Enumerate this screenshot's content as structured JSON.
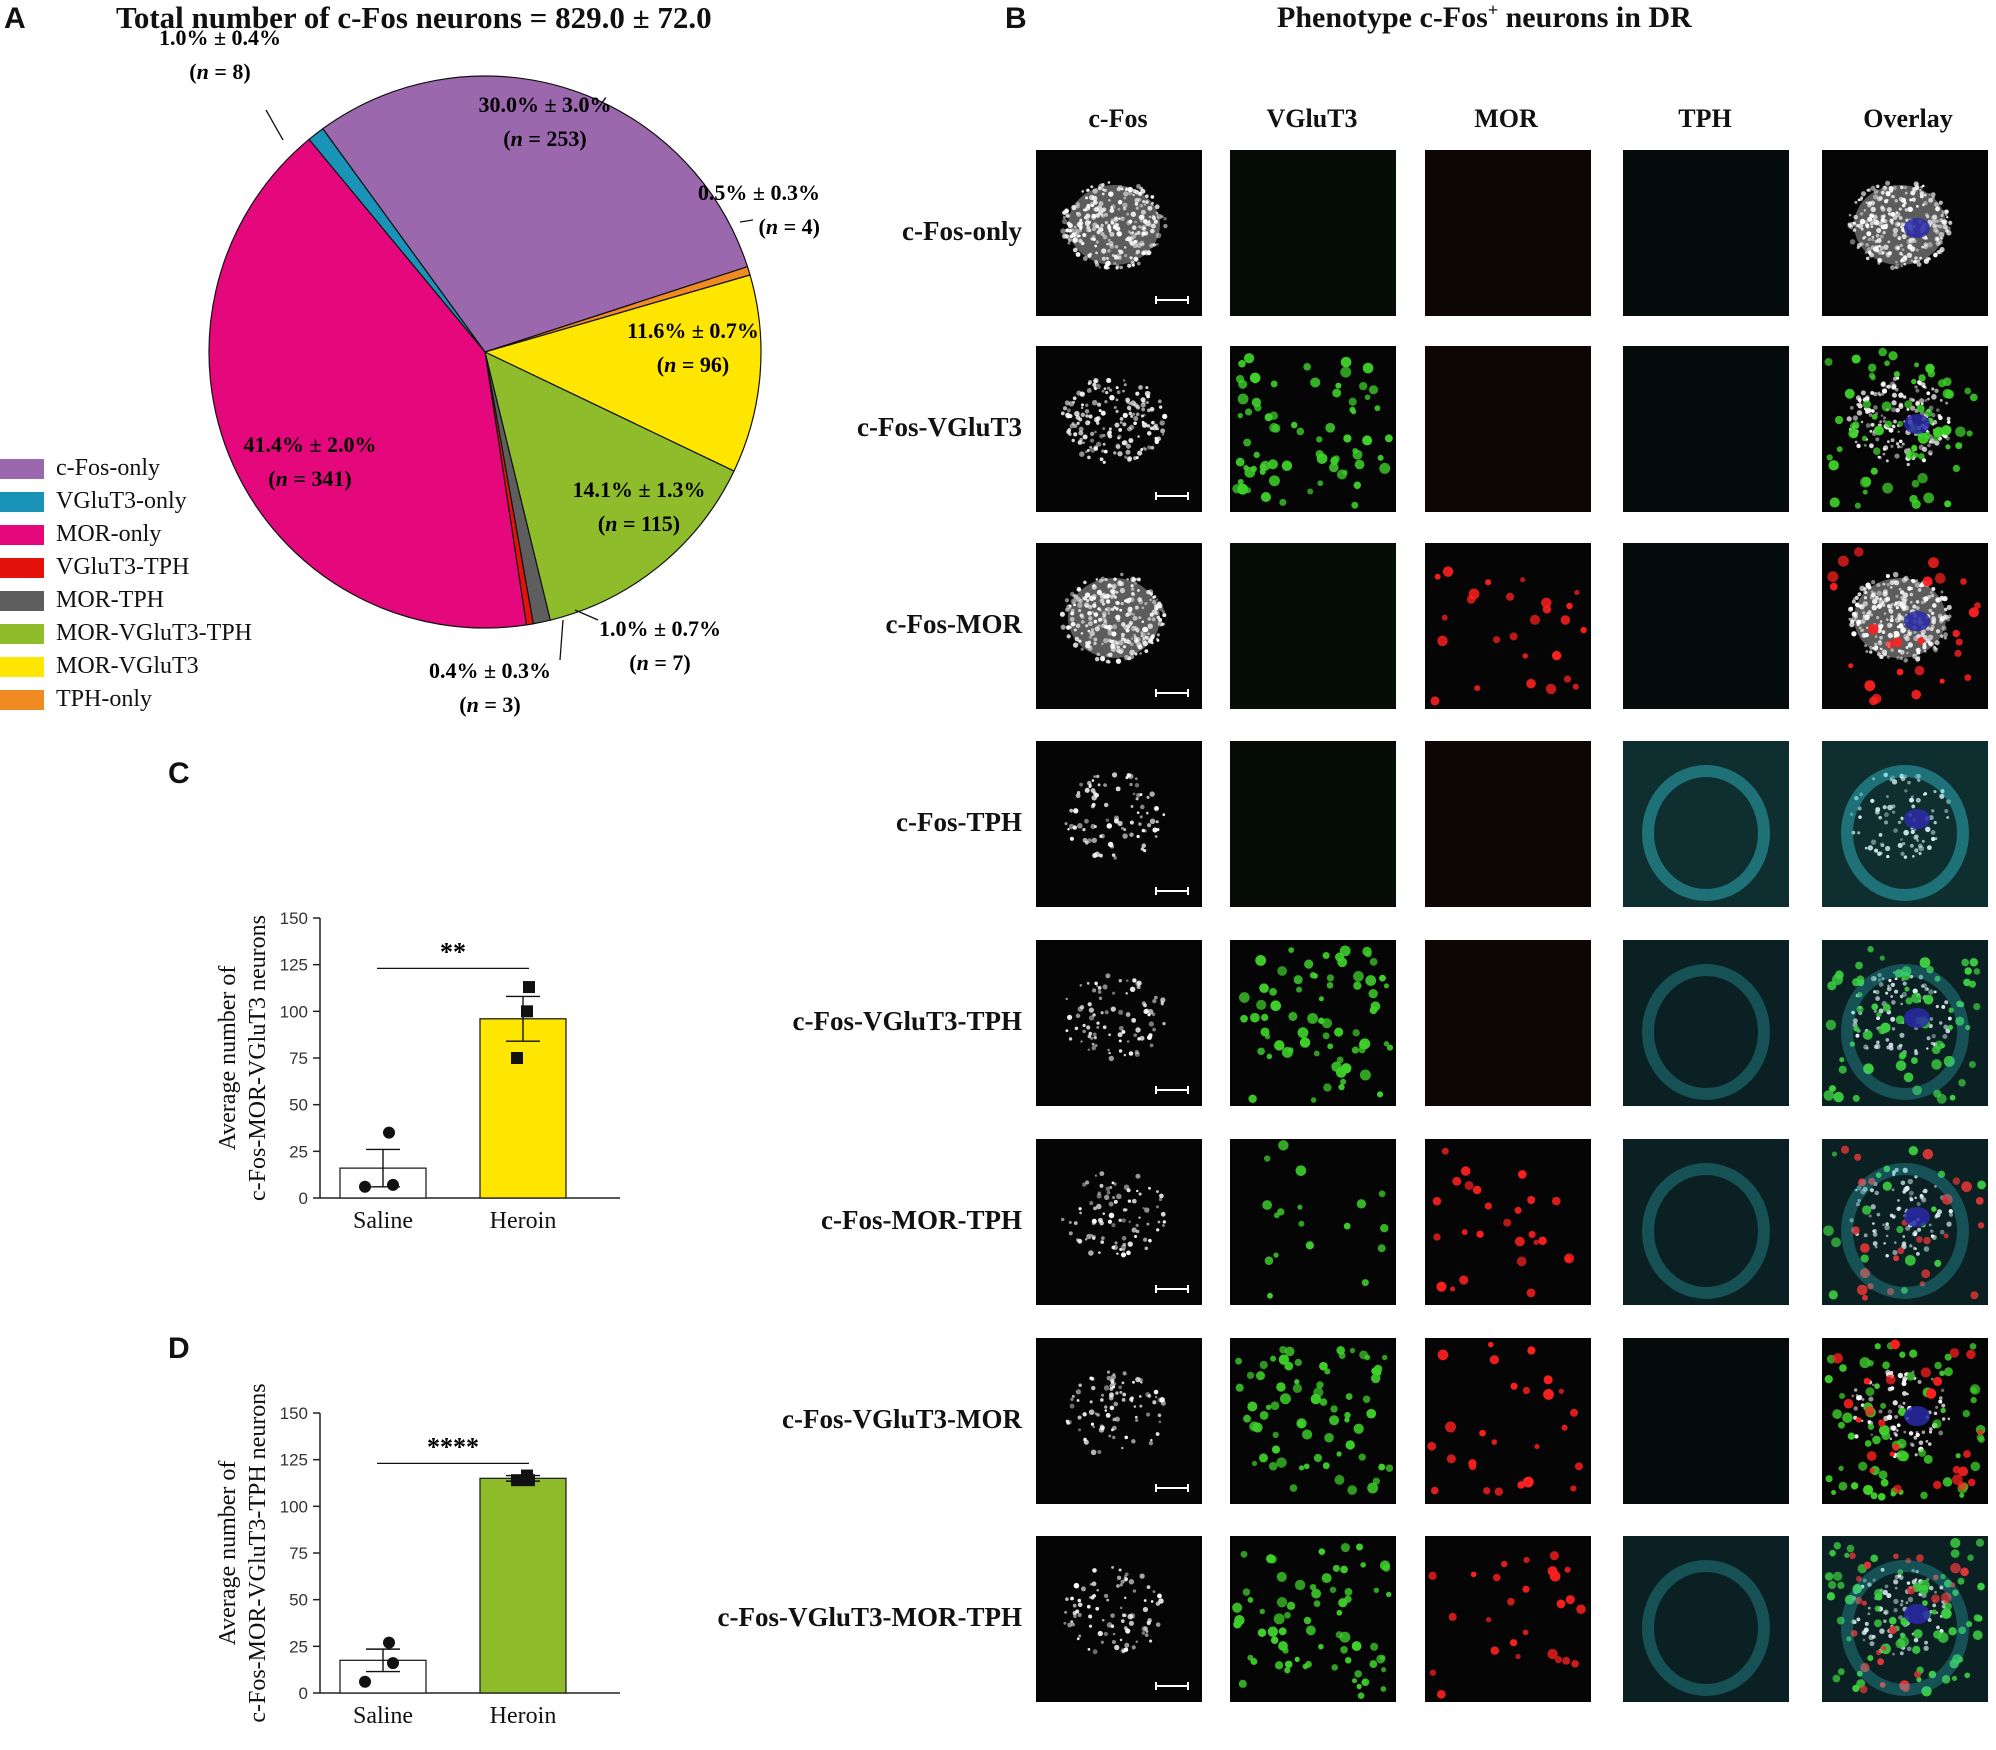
{
  "panel_labels": {
    "a": "A",
    "b": "B",
    "c": "C",
    "d": "D"
  },
  "panel_a": {
    "title": "Total number of c-Fos neurons = 829.0 ± 72.0"
  },
  "panel_b": {
    "title_main": "Phenotype c-Fos",
    "title_sup": "+",
    "title_tail": " neurons in DR"
  },
  "chart_data": [
    {
      "type": "pie",
      "title": "Total number of c-Fos neurons = 829.0 ± 72.0",
      "slices": [
        {
          "label": "c-Fos-only",
          "value": 30.0,
          "sem": 3.0,
          "n": 253,
          "color": "#9b67ad",
          "pct_text": "30.0% ± 3.0%",
          "n_text": "n",
          "n_value": "= 253"
        },
        {
          "label": "TPH-only",
          "value": 0.5,
          "sem": 0.3,
          "n": 4,
          "color": "#f08a22",
          "pct_text": "0.5% ± 0.3%",
          "n_text": "n",
          "n_value": "= 4"
        },
        {
          "label": "MOR-VGluT3",
          "value": 11.6,
          "sem": 0.7,
          "n": 96,
          "color": "#ffe600",
          "pct_text": "11.6% ± 0.7%",
          "n_text": "n",
          "n_value": "= 96"
        },
        {
          "label": "MOR-VGluT3-TPH",
          "value": 14.1,
          "sem": 1.3,
          "n": 115,
          "color": "#8fbc2a",
          "pct_text": "14.1% ± 1.3%",
          "n_text": "n",
          "n_value": "= 115"
        },
        {
          "label": "MOR-TPH",
          "value": 1.0,
          "sem": 0.7,
          "n": 7,
          "color": "#5e5e5e",
          "pct_text": "1.0% ± 0.7%",
          "n_text": "n",
          "n_value": "= 7"
        },
        {
          "label": "VGluT3-TPH",
          "value": 0.4,
          "sem": 0.3,
          "n": 3,
          "color": "#e3120b",
          "pct_text": "0.4% ± 0.3%",
          "n_text": "n",
          "n_value": "= 3"
        },
        {
          "label": "MOR-only",
          "value": 41.4,
          "sem": 2.0,
          "n": 341,
          "color": "#e4087c",
          "pct_text": "41.4% ± 2.0%",
          "n_text": "n",
          "n_value": "= 341"
        },
        {
          "label": "VGluT3-only",
          "value": 1.0,
          "sem": 0.4,
          "n": 8,
          "color": "#1a93b8",
          "pct_text": "1.0% ± 0.4%",
          "n_text": "n",
          "n_value": "= 8"
        }
      ],
      "legend": [
        "c-Fos-only",
        "VGluT3-only",
        "MOR-only",
        "VGluT3-TPH",
        "MOR-TPH",
        "MOR-VGluT3-TPH",
        "MOR-VGluT3",
        "TPH-only"
      ],
      "legend_colors": [
        "#9b67ad",
        "#1a93b8",
        "#e4087c",
        "#e3120b",
        "#5e5e5e",
        "#8fbc2a",
        "#ffe600",
        "#f08a22"
      ],
      "legend_placement": "left"
    },
    {
      "type": "bar",
      "panel": "C",
      "categories": [
        "Saline",
        "Heroin"
      ],
      "values": [
        16,
        96
      ],
      "sem": [
        10,
        12
      ],
      "points": [
        [
          35,
          7,
          6
        ],
        [
          113,
          100,
          75
        ]
      ],
      "point_markers": [
        "circle",
        "square"
      ],
      "bar_colors": [
        "#ffffff",
        "#ffe600"
      ],
      "ylabel_line1": "Average number of",
      "ylabel_line2": "c-Fos-MOR-VGluT3 neurons",
      "ylim": [
        0,
        150
      ],
      "yticks": [
        0,
        25,
        50,
        75,
        100,
        125,
        150
      ],
      "significance": "**"
    },
    {
      "type": "bar",
      "panel": "D",
      "categories": [
        "Saline",
        "Heroin"
      ],
      "values": [
        17.5,
        115
      ],
      "sem": [
        6,
        1.5
      ],
      "points": [
        [
          27,
          16,
          6
        ],
        [
          114,
          116.5,
          114
        ]
      ],
      "point_markers": [
        "circle",
        "square"
      ],
      "bar_colors": [
        "#ffffff",
        "#8fbc2a"
      ],
      "ylabel_line1": "Average number of",
      "ylabel_line2": "c-Fos-MOR-VGluT3-TPH neurons",
      "ylim": [
        0,
        150
      ],
      "yticks": [
        0,
        25,
        50,
        75,
        100,
        125,
        150
      ],
      "significance": "****"
    }
  ],
  "micrographs": {
    "columns": [
      "c-Fos",
      "VGluT3",
      "MOR",
      "TPH",
      "Overlay"
    ],
    "rows": [
      {
        "label": "c-Fos-only",
        "cfos": 3,
        "vglut3": 0,
        "mor": 0,
        "tph": 0
      },
      {
        "label": "c-Fos-VGluT3",
        "cfos": 2,
        "vglut3": 3,
        "mor": 0,
        "tph": 0
      },
      {
        "label": "c-Fos-MOR",
        "cfos": 3,
        "vglut3": 0,
        "mor": 2,
        "tph": 0
      },
      {
        "label": "c-Fos-TPH",
        "cfos": 1,
        "vglut3": 0,
        "mor": 0,
        "tph": 3
      },
      {
        "label": "c-Fos-VGluT3-TPH",
        "cfos": 1,
        "vglut3": 3,
        "mor": 0,
        "tph": 2
      },
      {
        "label": "c-Fos-MOR-TPH",
        "cfos": 1,
        "vglut3": 1,
        "mor": 2,
        "tph": 2
      },
      {
        "label": "c-Fos-VGluT3-MOR",
        "cfos": 1,
        "vglut3": 3,
        "mor": 2,
        "tph": 0
      },
      {
        "label": "c-Fos-VGluT3-MOR-TPH",
        "cfos": 1,
        "vglut3": 3,
        "mor": 2,
        "tph": 2
      }
    ],
    "channel_colors": {
      "cfos": "#ffffff",
      "vglut3": "#3fd12b",
      "mor": "#ff2020",
      "tph": "#33c4cf",
      "nucleus": "#2a2aa8"
    }
  }
}
